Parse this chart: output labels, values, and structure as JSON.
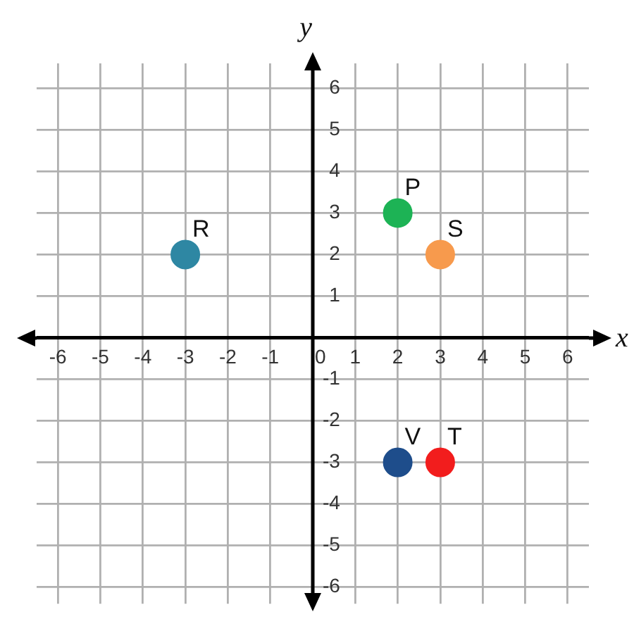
{
  "chart_data": {
    "type": "scatter",
    "xlabel": "x",
    "ylabel": "y",
    "xlim": [
      -6.5,
      6.5
    ],
    "ylim": [
      -6.4,
      6.6
    ],
    "xticks": [
      -6,
      -5,
      -4,
      -3,
      -2,
      -1,
      0,
      1,
      2,
      3,
      4,
      5,
      6
    ],
    "yticks": [
      -6,
      -5,
      -4,
      -3,
      -2,
      -1,
      1,
      2,
      3,
      4,
      5,
      6
    ],
    "grid": true,
    "marker": "circle",
    "series": [
      {
        "name": "R",
        "color": "#2e87a3",
        "x": [
          -3
        ],
        "values": [
          2
        ]
      },
      {
        "name": "P",
        "color": "#1db355",
        "x": [
          2
        ],
        "values": [
          3
        ]
      },
      {
        "name": "S",
        "color": "#f79a4d",
        "x": [
          3
        ],
        "values": [
          2
        ]
      },
      {
        "name": "V",
        "color": "#1e4d8b",
        "x": [
          2
        ],
        "values": [
          -3
        ]
      },
      {
        "name": "T",
        "color": "#f21d1d",
        "x": [
          3
        ],
        "values": [
          -3
        ]
      }
    ]
  }
}
